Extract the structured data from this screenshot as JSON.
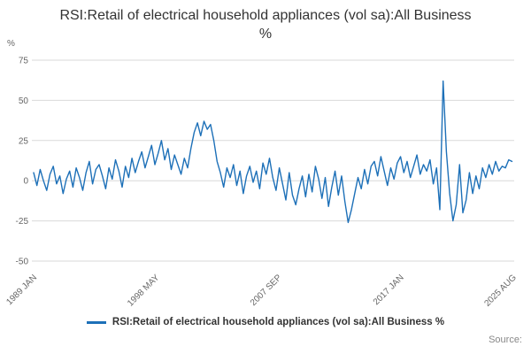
{
  "page": {
    "title": "RSI:Retail of electrical household appliances (vol sa):All Business %",
    "source_label": "Source:"
  },
  "legend": {
    "label": "RSI:Retail of electrical household appliances (vol sa):All Business %"
  },
  "colors": {
    "line": "#1d70b8",
    "grid": "#d9d9d9",
    "tick_text": "#666666",
    "title_text": "#333333"
  },
  "chart_data": {
    "type": "line",
    "title": "RSI:Retail of electrical household appliances (vol sa):All Business %",
    "xlabel": "",
    "ylabel": "%",
    "xlim": [
      1989.0,
      2025.67
    ],
    "ylim": [
      -50,
      75
    ],
    "grid": "horizontal-only",
    "legend_position": "bottom",
    "y_ticks": [
      75,
      50,
      25,
      0,
      -25,
      -50
    ],
    "x_ticks": [
      {
        "label": "1989 JAN",
        "x": 1989.0
      },
      {
        "label": "1998 MAY",
        "x": 1998.33
      },
      {
        "label": "2007 SEP",
        "x": 2007.67
      },
      {
        "label": "2017 JAN",
        "x": 2017.0
      },
      {
        "label": "2025 AUG",
        "x": 2025.58
      }
    ],
    "x_start": 1989.0,
    "x_step": 0.25,
    "series": [
      {
        "name": "RSI:Retail of electrical household appliances (vol sa):All Business %",
        "values": [
          5,
          -3,
          7,
          0,
          -6,
          4,
          9,
          -2,
          3,
          -8,
          1,
          6,
          -4,
          8,
          2,
          -6,
          5,
          12,
          -2,
          7,
          10,
          3,
          -5,
          8,
          1,
          13,
          6,
          -4,
          9,
          2,
          14,
          5,
          12,
          18,
          8,
          15,
          22,
          10,
          17,
          25,
          13,
          20,
          7,
          16,
          10,
          4,
          14,
          8,
          20,
          30,
          36,
          28,
          37,
          32,
          35,
          25,
          12,
          5,
          -4,
          8,
          2,
          10,
          -3,
          6,
          -8,
          3,
          9,
          -1,
          6,
          -5,
          11,
          4,
          14,
          2,
          -6,
          8,
          -2,
          -12,
          5,
          -9,
          -15,
          -5,
          3,
          -10,
          4,
          -7,
          9,
          1,
          -11,
          2,
          -16,
          -4,
          6,
          -9,
          3,
          -13,
          -26,
          -18,
          -8,
          2,
          -5,
          7,
          -2,
          9,
          12,
          3,
          15,
          6,
          -3,
          8,
          1,
          11,
          15,
          5,
          12,
          2,
          9,
          16,
          4,
          10,
          6,
          13,
          -2,
          8,
          -18,
          62,
          18,
          -8,
          -25,
          -15,
          10,
          -20,
          -12,
          5,
          -8,
          3,
          -5,
          8,
          2,
          10,
          4,
          12,
          6,
          9,
          8,
          13,
          12
        ]
      }
    ]
  }
}
